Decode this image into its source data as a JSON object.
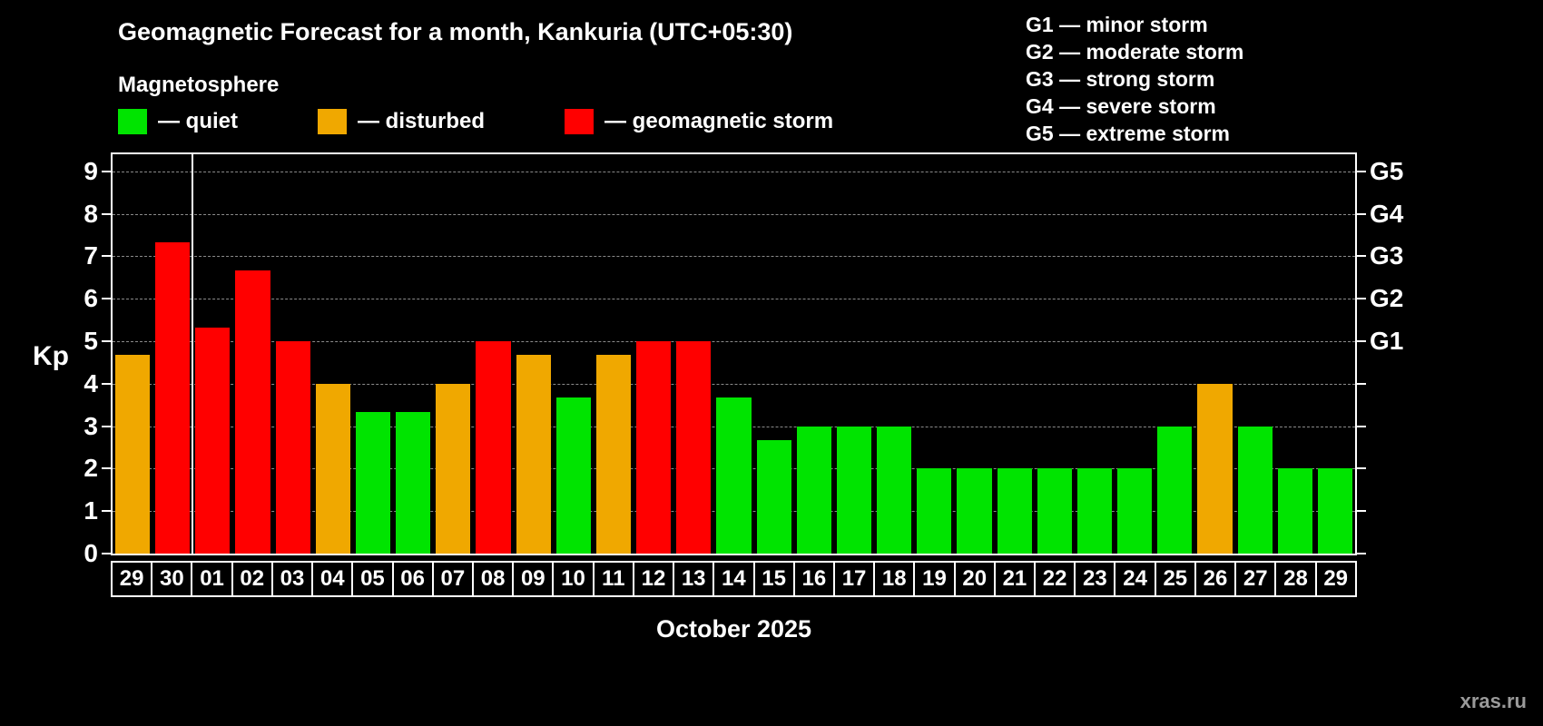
{
  "header": {
    "title": "Geomagnetic Forecast for a month, Kankuria (UTC+05:30)",
    "subtitle": "Magnetosphere"
  },
  "legend": {
    "items": [
      {
        "key": "quiet",
        "label": "— quiet",
        "color": "#00e400"
      },
      {
        "key": "disturbed",
        "label": "— disturbed",
        "color": "#f0a800"
      },
      {
        "key": "storm",
        "label": "— geomagnetic storm",
        "color": "#ff0000"
      }
    ]
  },
  "storm_scale": {
    "items": [
      "G1 — minor storm",
      "G2 — moderate storm",
      "G3 — strong storm",
      "G4 — severe storm",
      "G5 — extreme storm"
    ]
  },
  "watermark": "xras.ru",
  "chart_data": {
    "type": "bar",
    "title": "Geomagnetic Forecast for a month, Kankuria (UTC+05:30)",
    "subtitle": "Magnetosphere",
    "ylabel": "Kp",
    "xlabel": "October 2025",
    "ylim": [
      0,
      9.4
    ],
    "yticks": [
      0,
      1,
      2,
      3,
      4,
      5,
      6,
      7,
      8,
      9
    ],
    "grid": "dashed-horizontal",
    "right_axis": [
      {
        "label": "G1",
        "value": 5
      },
      {
        "label": "G2",
        "value": 6
      },
      {
        "label": "G3",
        "value": 7
      },
      {
        "label": "G4",
        "value": 8
      },
      {
        "label": "G5",
        "value": 9
      }
    ],
    "categories": [
      "29",
      "30",
      "01",
      "02",
      "03",
      "04",
      "05",
      "06",
      "07",
      "08",
      "09",
      "10",
      "11",
      "12",
      "13",
      "14",
      "15",
      "16",
      "17",
      "18",
      "19",
      "20",
      "21",
      "22",
      "23",
      "24",
      "25",
      "26",
      "27",
      "28",
      "29"
    ],
    "values": [
      4.67,
      7.33,
      5.33,
      6.67,
      5,
      4,
      3.33,
      3.33,
      4,
      5,
      4.67,
      3.67,
      4.67,
      5,
      5,
      3.67,
      2.67,
      3,
      3,
      3,
      2,
      2,
      2,
      2,
      2,
      2,
      3,
      4,
      3,
      2,
      2
    ],
    "statuses": [
      "disturbed",
      "storm",
      "storm",
      "storm",
      "storm",
      "disturbed",
      "quiet",
      "quiet",
      "disturbed",
      "storm",
      "disturbed",
      "quiet",
      "disturbed",
      "storm",
      "storm",
      "quiet",
      "quiet",
      "quiet",
      "quiet",
      "quiet",
      "quiet",
      "quiet",
      "quiet",
      "quiet",
      "quiet",
      "quiet",
      "quiet",
      "disturbed",
      "quiet",
      "quiet",
      "quiet"
    ],
    "colors": {
      "quiet": "#00e400",
      "disturbed": "#f0a800",
      "storm": "#ff0000"
    },
    "separator_after_index": 1,
    "legend_position": "top-left",
    "storm_scale_legend_position": "top-right"
  }
}
